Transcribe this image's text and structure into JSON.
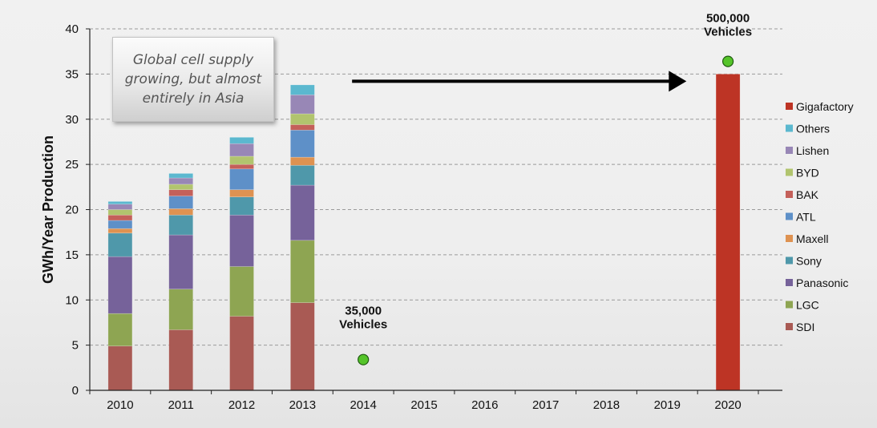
{
  "chart_data": {
    "type": "bar",
    "stacked": true,
    "ylabel": "GWh/Year Production",
    "ylim": [
      0,
      40
    ],
    "yticks": [
      0,
      5,
      10,
      15,
      20,
      25,
      30,
      35,
      40
    ],
    "grid": "horizontal dashed",
    "legend_position": "right",
    "categories": [
      "2010",
      "2011",
      "2012",
      "2013",
      "2014",
      "2015",
      "2016",
      "2017",
      "2018",
      "2019",
      "2020"
    ],
    "series": [
      {
        "name": "SDI",
        "color": "#a95a54",
        "values": [
          4.9,
          6.7,
          8.2,
          9.7,
          0,
          0,
          0,
          0,
          0,
          0,
          0
        ]
      },
      {
        "name": "LGC",
        "color": "#8ea552",
        "values": [
          3.6,
          4.5,
          5.5,
          6.9,
          0,
          0,
          0,
          0,
          0,
          0,
          0
        ]
      },
      {
        "name": "Panasonic",
        "color": "#76629a",
        "values": [
          6.3,
          6.0,
          5.7,
          6.1,
          0,
          0,
          0,
          0,
          0,
          0,
          0
        ]
      },
      {
        "name": "Sony",
        "color": "#4f98aa",
        "values": [
          2.6,
          2.2,
          2.0,
          2.2,
          0,
          0,
          0,
          0,
          0,
          0,
          0
        ]
      },
      {
        "name": "Maxell",
        "color": "#de9251",
        "values": [
          0.5,
          0.7,
          0.8,
          0.9,
          0,
          0,
          0,
          0,
          0,
          0,
          0
        ]
      },
      {
        "name": "ATL",
        "color": "#5e90c8",
        "values": [
          0.9,
          1.4,
          2.3,
          3.0,
          0,
          0,
          0,
          0,
          0,
          0,
          0
        ]
      },
      {
        "name": "BAK",
        "color": "#c4605a",
        "values": [
          0.6,
          0.7,
          0.5,
          0.6,
          0,
          0,
          0,
          0,
          0,
          0,
          0
        ]
      },
      {
        "name": "BYD",
        "color": "#b1c46e",
        "values": [
          0.6,
          0.6,
          0.9,
          1.2,
          0,
          0,
          0,
          0,
          0,
          0,
          0
        ]
      },
      {
        "name": "Lishen",
        "color": "#9887b6",
        "values": [
          0.6,
          0.7,
          1.4,
          2.1,
          0,
          0,
          0,
          0,
          0,
          0,
          0
        ]
      },
      {
        "name": "Others",
        "color": "#5bb8cf",
        "values": [
          0.3,
          0.5,
          0.7,
          1.1,
          0,
          0,
          0,
          0,
          0,
          0,
          0
        ]
      },
      {
        "name": "Gigafactory",
        "color": "#bd3425",
        "values": [
          0,
          0,
          0,
          0,
          0,
          0,
          0,
          0,
          0,
          0,
          35
        ]
      }
    ],
    "legend_order": [
      "Gigafactory",
      "Others",
      "Lishen",
      "BYD",
      "BAK",
      "ATL",
      "Maxell",
      "Sony",
      "Panasonic",
      "LGC",
      "SDI"
    ],
    "markers": [
      {
        "category": "2014",
        "y": 3.4,
        "color": "#55c42a",
        "label_line1": "35,000",
        "label_line2": "Vehicles"
      },
      {
        "category": "2020",
        "y": 36.4,
        "color": "#55c42a",
        "label_line1": "500,000",
        "label_line2": "Vehicles"
      }
    ],
    "arrow": {
      "from_category": "2014",
      "to_category": "2019",
      "y": 34.2
    }
  },
  "callout": {
    "text": "Global cell supply growing, but almost entirely in Asia"
  }
}
